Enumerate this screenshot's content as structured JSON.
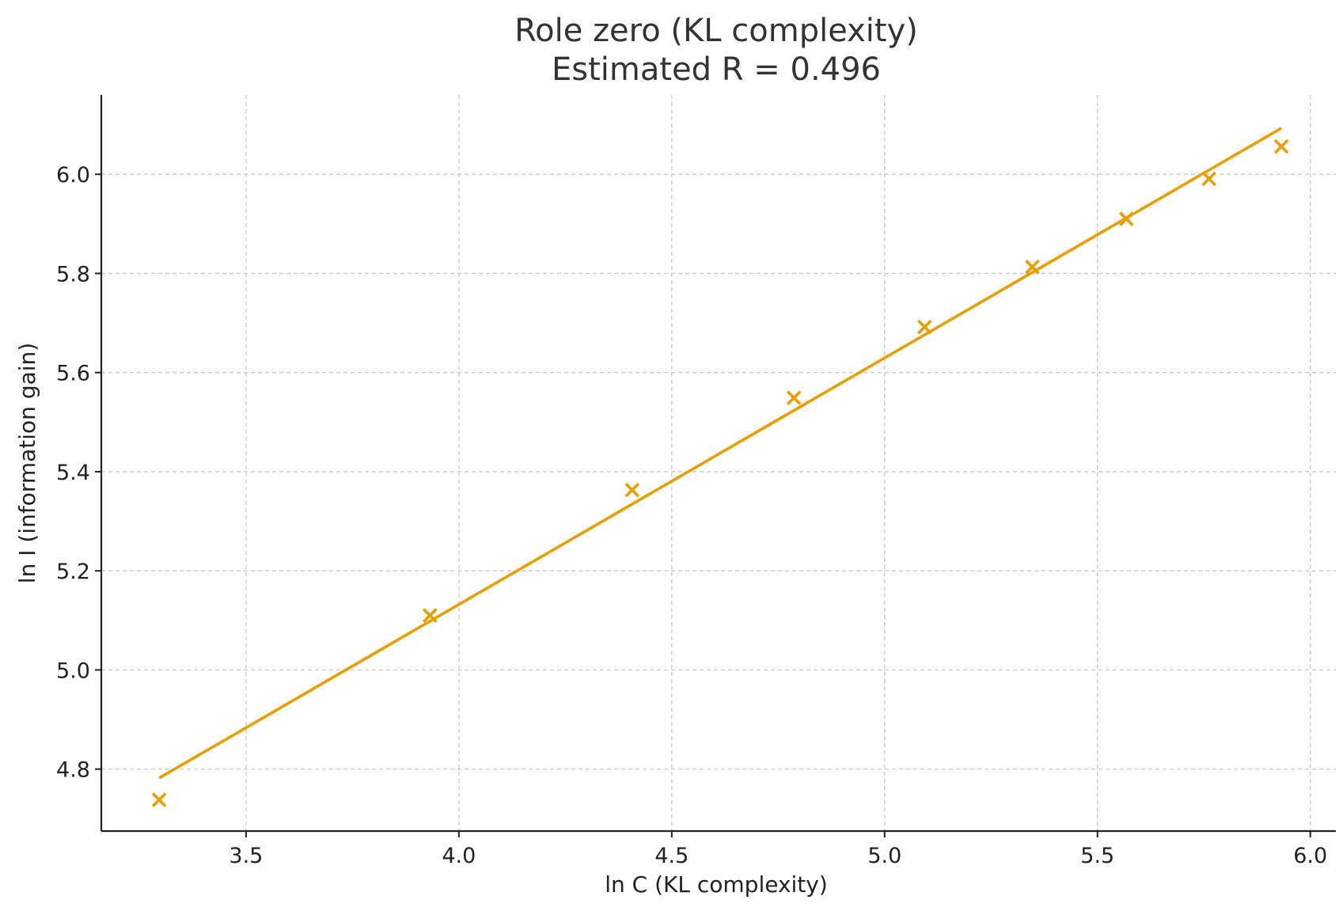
{
  "chart_data": {
    "type": "scatter",
    "title": "Role zero (KL complexity)",
    "subtitle": "Estimated R = 0.496",
    "xlabel": "ln C  (KL complexity)",
    "ylabel": "ln I  (information gain)",
    "xlim": [
      3.16,
      6.06
    ],
    "ylim": [
      4.675,
      6.16
    ],
    "xticks": [
      3.5,
      4.0,
      4.5,
      5.0,
      5.5,
      6.0
    ],
    "xtick_labels": [
      "3.5",
      "4.0",
      "4.5",
      "5.0",
      "5.5",
      "6.0"
    ],
    "yticks": [
      4.8,
      5.0,
      5.2,
      5.4,
      5.6,
      5.8,
      6.0
    ],
    "ytick_labels": [
      "4.8",
      "5.0",
      "5.2",
      "5.4",
      "5.6",
      "5.8",
      "6.0"
    ],
    "grid": true,
    "color": "#E69F00",
    "points": {
      "x": [
        3.296,
        3.932,
        4.407,
        4.787,
        5.094,
        5.347,
        5.568,
        5.762,
        5.932
      ],
      "y": [
        4.738,
        5.11,
        5.363,
        5.549,
        5.692,
        5.813,
        5.91,
        5.991,
        6.056
      ]
    },
    "fit_line": {
      "x": [
        3.296,
        5.932
      ],
      "y": [
        4.782,
        6.093
      ]
    }
  }
}
